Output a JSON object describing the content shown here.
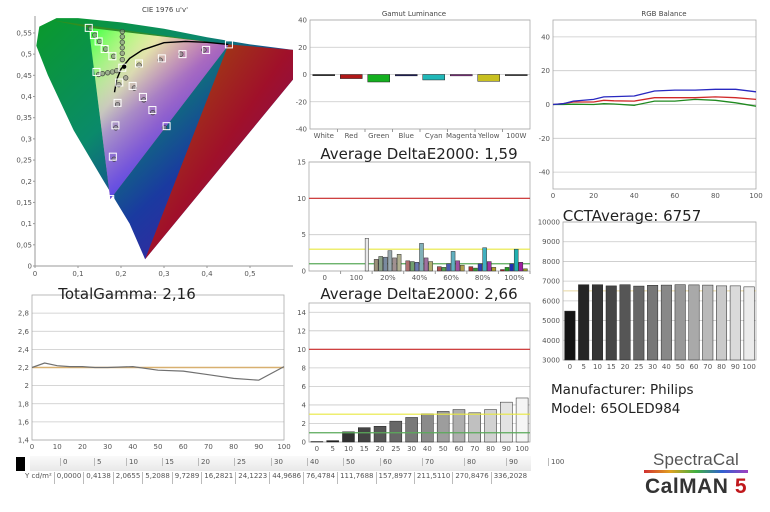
{
  "chart_data": [
    {
      "id": "cie",
      "type": "scatter",
      "title": "CIE 1976 u'v'",
      "xlabel": "",
      "ylabel": "",
      "xlim": [
        0,
        0.6
      ],
      "ylim": [
        0,
        0.59
      ],
      "x_ticks": [
        "0",
        "0,1",
        "0,2",
        "0,3",
        "0,4",
        "0,5"
      ],
      "y_ticks": [
        "0",
        "0,05",
        "0,1",
        "0,15",
        "0,2",
        "0,25",
        "0,3",
        "0,35",
        "0,4",
        "0,45",
        "0,5",
        "0,55"
      ],
      "gamut_triangle": [
        [
          0.451,
          0.523
        ],
        [
          0.125,
          0.562
        ],
        [
          0.175,
          0.158
        ]
      ],
      "white_point": [
        0.198,
        0.468
      ],
      "targets": [
        [
          0.125,
          0.562
        ],
        [
          0.137,
          0.545
        ],
        [
          0.148,
          0.53
        ],
        [
          0.162,
          0.512
        ],
        [
          0.18,
          0.495
        ],
        [
          0.143,
          0.458
        ],
        [
          0.203,
          0.468
        ],
        [
          0.196,
          0.433
        ],
        [
          0.227,
          0.425
        ],
        [
          0.251,
          0.399
        ],
        [
          0.273,
          0.368
        ],
        [
          0.306,
          0.33
        ],
        [
          0.192,
          0.385
        ],
        [
          0.187,
          0.332
        ],
        [
          0.181,
          0.258
        ],
        [
          0.175,
          0.158
        ],
        [
          0.242,
          0.478
        ],
        [
          0.295,
          0.49
        ],
        [
          0.343,
          0.5
        ],
        [
          0.398,
          0.51
        ],
        [
          0.451,
          0.523
        ]
      ],
      "measured": [
        [
          0.129,
          0.561
        ],
        [
          0.139,
          0.545
        ],
        [
          0.15,
          0.53
        ],
        [
          0.164,
          0.512
        ],
        [
          0.183,
          0.495
        ],
        [
          0.148,
          0.452
        ],
        [
          0.157,
          0.454
        ],
        [
          0.169,
          0.456
        ],
        [
          0.18,
          0.458
        ],
        [
          0.19,
          0.461
        ],
        [
          0.203,
          0.553
        ],
        [
          0.203,
          0.541
        ],
        [
          0.203,
          0.528
        ],
        [
          0.203,
          0.515
        ],
        [
          0.203,
          0.502
        ],
        [
          0.203,
          0.487
        ],
        [
          0.211,
          0.444
        ],
        [
          0.195,
          0.428
        ],
        [
          0.231,
          0.42
        ],
        [
          0.253,
          0.392
        ],
        [
          0.274,
          0.362
        ],
        [
          0.301,
          0.326
        ],
        [
          0.192,
          0.381
        ],
        [
          0.188,
          0.326
        ],
        [
          0.184,
          0.252
        ],
        [
          0.242,
          0.474
        ],
        [
          0.291,
          0.486
        ],
        [
          0.339,
          0.5
        ],
        [
          0.393,
          0.51
        ]
      ],
      "planckian_locus": [
        [
          0.185,
          0.41
        ],
        [
          0.19,
          0.44
        ],
        [
          0.2,
          0.465
        ],
        [
          0.22,
          0.49
        ],
        [
          0.25,
          0.51
        ],
        [
          0.3,
          0.527
        ],
        [
          0.35,
          0.53
        ],
        [
          0.4,
          0.528
        ],
        [
          0.45,
          0.523
        ]
      ]
    },
    {
      "id": "gamut_luminance",
      "type": "bar",
      "title": "Gamut Luminance",
      "categories": [
        "White",
        "Red",
        "Green",
        "Blue",
        "Cyan",
        "Magenta",
        "Yellow",
        "100W"
      ],
      "values": [
        0,
        -3,
        -5.5,
        -1,
        -4,
        -1,
        -5,
        0
      ],
      "colors": [
        "#333333",
        "#b01818",
        "#14b020",
        "#101060",
        "#20b8b8",
        "#902890",
        "#c8c020",
        "#555555"
      ],
      "ylim": [
        -40,
        40
      ],
      "y_ticks": [
        "-40",
        "-20",
        "0",
        "20",
        "40"
      ]
    },
    {
      "id": "colorchecker_de",
      "type": "bar",
      "title": "Average DeltaE2000: 1,59",
      "ylim": [
        0,
        15
      ],
      "y_ticks": [
        "0",
        "5",
        "10",
        "15"
      ],
      "x_ticks": [
        "0",
        "100",
        "20%",
        "40%",
        "60%",
        "80%",
        "100%"
      ],
      "threshold_lines": [
        {
          "value": 10,
          "color": "#cc2a2a"
        },
        {
          "value": 3,
          "color": "#e8e840"
        },
        {
          "value": 1,
          "color": "#5aaa5a"
        }
      ],
      "groups": [
        {
          "label": "0",
          "values": [],
          "colors": []
        },
        {
          "label": "100",
          "values": [
            4.5
          ],
          "colors": [
            "#e8e8e8"
          ]
        },
        {
          "label": "20%",
          "values": [
            1.6,
            2.0,
            1.9,
            2.8,
            1.8,
            2.3
          ],
          "colors": [
            "#9a9078",
            "#8aa088",
            "#7a8aa0",
            "#9aaab0",
            "#a09090",
            "#b0b090"
          ]
        },
        {
          "label": "40%",
          "values": [
            1.4,
            1.3,
            1.2,
            3.8,
            1.8,
            1.3
          ],
          "colors": [
            "#b07070",
            "#70a070",
            "#6a7ab0",
            "#80b0b8",
            "#a070a0",
            "#b0b070"
          ]
        },
        {
          "label": "60%",
          "values": [
            0.6,
            0.5,
            1.0,
            2.7,
            1.4,
            0.8
          ],
          "colors": [
            "#b05050",
            "#50a050",
            "#4a5ab0",
            "#60b0c0",
            "#a050a0",
            "#b0a050"
          ]
        },
        {
          "label": "80%",
          "values": [
            0.6,
            0.4,
            1.0,
            3.2,
            1.3,
            0.5
          ],
          "colors": [
            "#b03030",
            "#30a030",
            "#3040b0",
            "#40b0c0",
            "#a030a0",
            "#b0a030"
          ]
        },
        {
          "label": "100%",
          "values": [
            0.2,
            0.5,
            1.0,
            3.0,
            1.2,
            0.3
          ],
          "colors": [
            "#a02020",
            "#20a020",
            "#2030b0",
            "#20b0b0",
            "#a020a0",
            "#a0a020"
          ]
        }
      ]
    },
    {
      "id": "rgb_balance",
      "type": "line",
      "title": "RGB Balance",
      "x": [
        0,
        5,
        10,
        20,
        25,
        30,
        40,
        50,
        60,
        70,
        80,
        90,
        100
      ],
      "xlim": [
        0,
        100
      ],
      "ylim": [
        -50,
        50
      ],
      "x_ticks": [
        "0",
        "20",
        "40",
        "60",
        "80",
        "100"
      ],
      "y_ticks": [
        "-40",
        "-20",
        "0",
        "20",
        "40"
      ],
      "series": [
        {
          "name": "Red",
          "color": "#d02828",
          "values": [
            0,
            0.5,
            1.5,
            1.5,
            2.5,
            2.2,
            2,
            4,
            4,
            4,
            4.5,
            4,
            3
          ]
        },
        {
          "name": "Green",
          "color": "#208a20",
          "values": [
            0,
            0,
            0.2,
            0,
            0.5,
            0.3,
            -0.5,
            2,
            2,
            3,
            2.5,
            1,
            -1
          ]
        },
        {
          "name": "Blue",
          "color": "#2828c0",
          "values": [
            0,
            0.5,
            2,
            3,
            4.5,
            4.7,
            5,
            8,
            8.5,
            8.5,
            9,
            9,
            7.5
          ]
        }
      ]
    },
    {
      "id": "cct",
      "type": "bar",
      "title": "CCTAverage: 6757",
      "categories": [
        "0",
        "5",
        "10",
        "15",
        "20",
        "25",
        "30",
        "40",
        "50",
        "60",
        "70",
        "80",
        "90",
        "100"
      ],
      "values": [
        5480,
        6820,
        6820,
        6760,
        6820,
        6750,
        6790,
        6800,
        6820,
        6810,
        6800,
        6760,
        6760,
        6710
      ],
      "ylim": [
        3000,
        10000
      ],
      "y_ticks": [
        "3000",
        "4000",
        "5000",
        "6000",
        "7000",
        "8000",
        "9000",
        "10000"
      ],
      "reference_line": 6504
    },
    {
      "id": "gamma",
      "type": "line",
      "title": "TotalGamma: 2,16",
      "x": [
        0,
        5,
        10,
        15,
        20,
        25,
        30,
        40,
        50,
        60,
        70,
        80,
        90,
        100
      ],
      "xlim": [
        0,
        100
      ],
      "ylim": [
        1.4,
        3.0
      ],
      "x_ticks": [
        "0",
        "10",
        "20",
        "30",
        "40",
        "50",
        "60",
        "70",
        "80",
        "90",
        "100"
      ],
      "y_ticks": [
        "1,4",
        "1,6",
        "1,8",
        "2",
        "2,2",
        "2,4",
        "2,6",
        "2,8"
      ],
      "target": 2.2,
      "series": [
        {
          "name": "Gamma",
          "color": "#707070",
          "values": [
            2.2,
            2.25,
            2.22,
            2.21,
            2.21,
            2.2,
            2.2,
            2.21,
            2.17,
            2.16,
            2.12,
            2.08,
            2.06,
            2.21
          ]
        }
      ]
    },
    {
      "id": "grayscale_de",
      "type": "bar",
      "title": "Average DeltaE2000: 2,66",
      "categories": [
        "0",
        "5",
        "10",
        "15",
        "20",
        "25",
        "30",
        "40",
        "50",
        "60",
        "70",
        "80",
        "90",
        "100"
      ],
      "values": [
        0.05,
        0.15,
        1.1,
        1.55,
        1.7,
        2.25,
        2.65,
        3.05,
        3.3,
        3.5,
        3.15,
        3.5,
        4.3,
        4.75
      ],
      "ylim": [
        0,
        15
      ],
      "y_ticks": [
        "0",
        "2",
        "4",
        "6",
        "8",
        "10",
        "12",
        "14"
      ],
      "threshold_lines": [
        {
          "value": 10,
          "color": "#cc2a2a"
        },
        {
          "value": 3,
          "color": "#e8e840"
        },
        {
          "value": 1,
          "color": "#5aaa5a"
        }
      ]
    }
  ],
  "luminance_table": {
    "row_label": "Y cd/m²",
    "levels": [
      "0",
      "5",
      "10",
      "15",
      "20",
      "25",
      "30",
      "40",
      "50",
      "60",
      "70",
      "80",
      "90",
      "100"
    ],
    "values": [
      "0,0000",
      "0,4138",
      "2,0655",
      "5,2088",
      "9,7289",
      "16,2821",
      "24,1223",
      "44,9686",
      "76,4784",
      "111,7688",
      "157,8977",
      "211,5110",
      "270,8476",
      "336,2028"
    ]
  },
  "info": {
    "manufacturer": "Manufacturer: Philips",
    "model": "Model: 65OLED984"
  },
  "logo": {
    "brand": "SpectraCal",
    "product": "CalMAN",
    "version": "5"
  }
}
